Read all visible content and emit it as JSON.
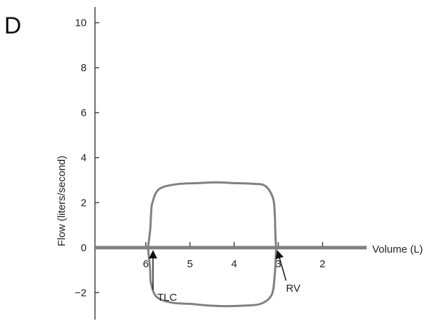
{
  "chart_data": {
    "type": "line",
    "panel_label": "D",
    "xlabel": "Volume (L)",
    "ylabel": "Flow (liters/second)",
    "x_reversed": true,
    "xlim": [
      7.15,
      1.0
    ],
    "ylim": [
      -3.2,
      10.7
    ],
    "x_ticks": [
      6,
      5,
      4,
      3,
      2
    ],
    "y_ticks": [
      10,
      8,
      6,
      4,
      2,
      0,
      -2
    ],
    "y_tick_labels": [
      "10",
      "8",
      "6",
      "4",
      "2",
      "0",
      "−2"
    ],
    "grid": false,
    "colors": {
      "curve": "#808080",
      "zero_line": "#808080",
      "axis": "#444444"
    },
    "series": [
      {
        "x": [
          5.95,
          5.9,
          5.88,
          5.85,
          5.7,
          5.3,
          4.8,
          4.4,
          4.0,
          3.6,
          3.3,
          3.12,
          3.08,
          3.07,
          3.06,
          3.05,
          3.06,
          3.08,
          3.15,
          3.4,
          3.8,
          4.2,
          4.6,
          5.0,
          5.4,
          5.75,
          5.88,
          5.9,
          5.93,
          5.95
        ],
        "y": [
          0,
          0.8,
          1.5,
          2.0,
          2.6,
          2.82,
          2.87,
          2.9,
          2.87,
          2.84,
          2.75,
          2.2,
          1.5,
          0.8,
          0.3,
          0,
          -0.5,
          -1.2,
          -2.1,
          -2.5,
          -2.58,
          -2.6,
          -2.57,
          -2.5,
          -2.45,
          -2.2,
          -1.6,
          -1.0,
          -0.4,
          0
        ]
      }
    ],
    "annotations": [
      {
        "text": "TLC",
        "x": 5.9,
        "y": -2.3,
        "target_x": 5.9,
        "target_y": 0
      },
      {
        "text": "RV",
        "x": 2.92,
        "y": -1.9,
        "target_x": 3.05,
        "target_y": 0
      }
    ]
  }
}
